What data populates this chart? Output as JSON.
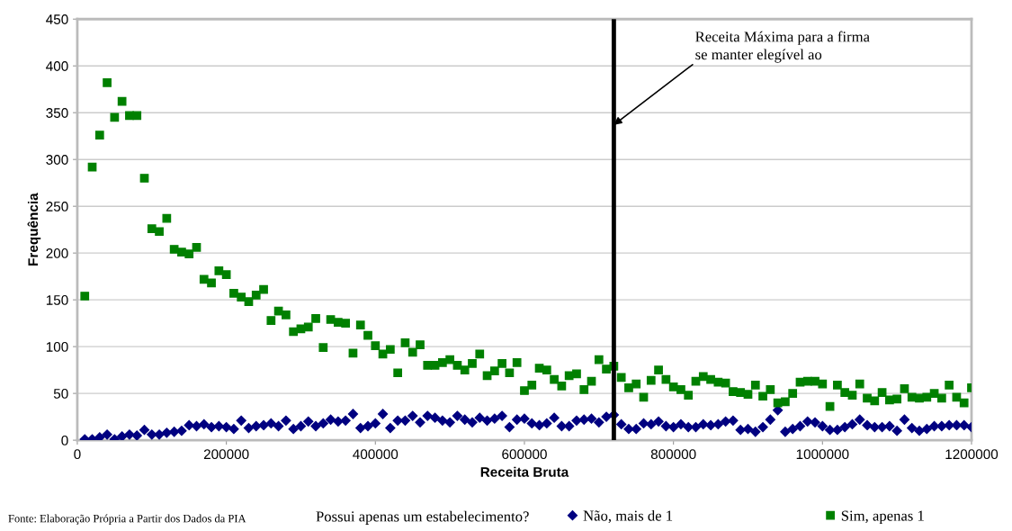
{
  "chart_data": {
    "type": "scatter",
    "xlabel": "Receita Bruta",
    "ylabel": "Frequência",
    "legend_title": "Possui apenas um estabelecimento?",
    "x": [
      10000,
      20000,
      30000,
      40000,
      50000,
      60000,
      70000,
      80000,
      90000,
      100000,
      110000,
      120000,
      130000,
      140000,
      150000,
      160000,
      170000,
      180000,
      190000,
      200000,
      210000,
      220000,
      230000,
      240000,
      250000,
      260000,
      270000,
      280000,
      290000,
      300000,
      310000,
      320000,
      330000,
      340000,
      350000,
      360000,
      370000,
      380000,
      390000,
      400000,
      410000,
      420000,
      430000,
      440000,
      450000,
      460000,
      470000,
      480000,
      490000,
      500000,
      510000,
      520000,
      530000,
      540000,
      550000,
      560000,
      570000,
      580000,
      590000,
      600000,
      610000,
      620000,
      630000,
      640000,
      650000,
      660000,
      670000,
      680000,
      690000,
      700000,
      710000,
      720000,
      730000,
      740000,
      750000,
      760000,
      770000,
      780000,
      790000,
      800000,
      810000,
      820000,
      830000,
      840000,
      850000,
      860000,
      870000,
      880000,
      890000,
      900000,
      910000,
      920000,
      930000,
      940000,
      950000,
      960000,
      970000,
      980000,
      990000,
      1000000,
      1010000,
      1020000,
      1030000,
      1040000,
      1050000,
      1060000,
      1070000,
      1080000,
      1090000,
      1100000,
      1110000,
      1120000,
      1130000,
      1140000,
      1150000,
      1160000,
      1170000,
      1180000,
      1190000,
      1200000
    ],
    "series": [
      {
        "name": "Não, mais de 1",
        "color": "#000080",
        "marker": "diamond",
        "values": [
          1,
          1,
          3,
          6,
          1,
          4,
          6,
          5,
          11,
          6,
          6,
          8,
          9,
          10,
          16,
          15,
          17,
          14,
          15,
          14,
          12,
          21,
          13,
          15,
          16,
          18,
          15,
          21,
          12,
          15,
          20,
          15,
          18,
          22,
          20,
          21,
          28,
          13,
          15,
          18,
          28,
          13,
          21,
          21,
          26,
          19,
          26,
          24,
          21,
          19,
          26,
          22,
          19,
          24,
          21,
          23,
          26,
          14,
          22,
          23,
          18,
          16,
          18,
          24,
          15,
          15,
          21,
          22,
          23,
          19,
          25,
          27,
          17,
          12,
          12,
          18,
          17,
          20,
          15,
          14,
          17,
          14,
          14,
          17,
          16,
          17,
          20,
          21,
          11,
          12,
          9,
          14,
          22,
          32,
          9,
          12,
          15,
          20,
          19,
          15,
          11,
          11,
          14,
          17,
          22,
          16,
          14,
          14,
          15,
          10,
          22,
          13,
          10,
          12,
          15,
          15,
          16,
          16,
          16,
          14
        ]
      },
      {
        "name": "Sim, apenas 1",
        "color": "#008000",
        "marker": "square",
        "values": [
          154,
          292,
          326,
          382,
          345,
          362,
          347,
          347,
          280,
          226,
          223,
          237,
          204,
          201,
          199,
          206,
          172,
          168,
          181,
          177,
          157,
          153,
          148,
          155,
          161,
          128,
          138,
          134,
          116,
          119,
          121,
          130,
          99,
          129,
          126,
          125,
          93,
          123,
          112,
          101,
          92,
          97,
          72,
          104,
          94,
          102,
          80,
          80,
          83,
          86,
          80,
          75,
          82,
          92,
          69,
          74,
          82,
          72,
          83,
          53,
          59,
          77,
          75,
          65,
          58,
          69,
          71,
          54,
          63,
          86,
          76,
          79,
          67,
          56,
          60,
          46,
          64,
          75,
          65,
          57,
          54,
          48,
          63,
          68,
          65,
          62,
          61,
          52,
          51,
          49,
          59,
          47,
          54,
          40,
          41,
          50,
          62,
          63,
          63,
          60,
          36,
          59,
          51,
          48,
          60,
          45,
          42,
          51,
          43,
          44,
          55,
          46,
          45,
          46,
          50,
          45,
          59,
          46,
          40,
          56
        ]
      }
    ],
    "xlim": [
      0,
      1200000
    ],
    "xticks": [
      0,
      200000,
      400000,
      600000,
      800000,
      1000000,
      1200000
    ],
    "ylim": [
      0,
      450
    ],
    "yticks": [
      0,
      50,
      100,
      150,
      200,
      250,
      300,
      350,
      400,
      450
    ],
    "grid": "y",
    "legend": "bottom",
    "ref_lines": [
      {
        "axis": "x",
        "value": 720000,
        "color": "#000000"
      }
    ],
    "annotations": [
      {
        "text": "Receita Máxima para a firma\nse manter elegível ao",
        "x": 720000,
        "y": 337
      },
      "Fonte: Elaboração Própria a Partir dos Dados da PIA"
    ]
  }
}
